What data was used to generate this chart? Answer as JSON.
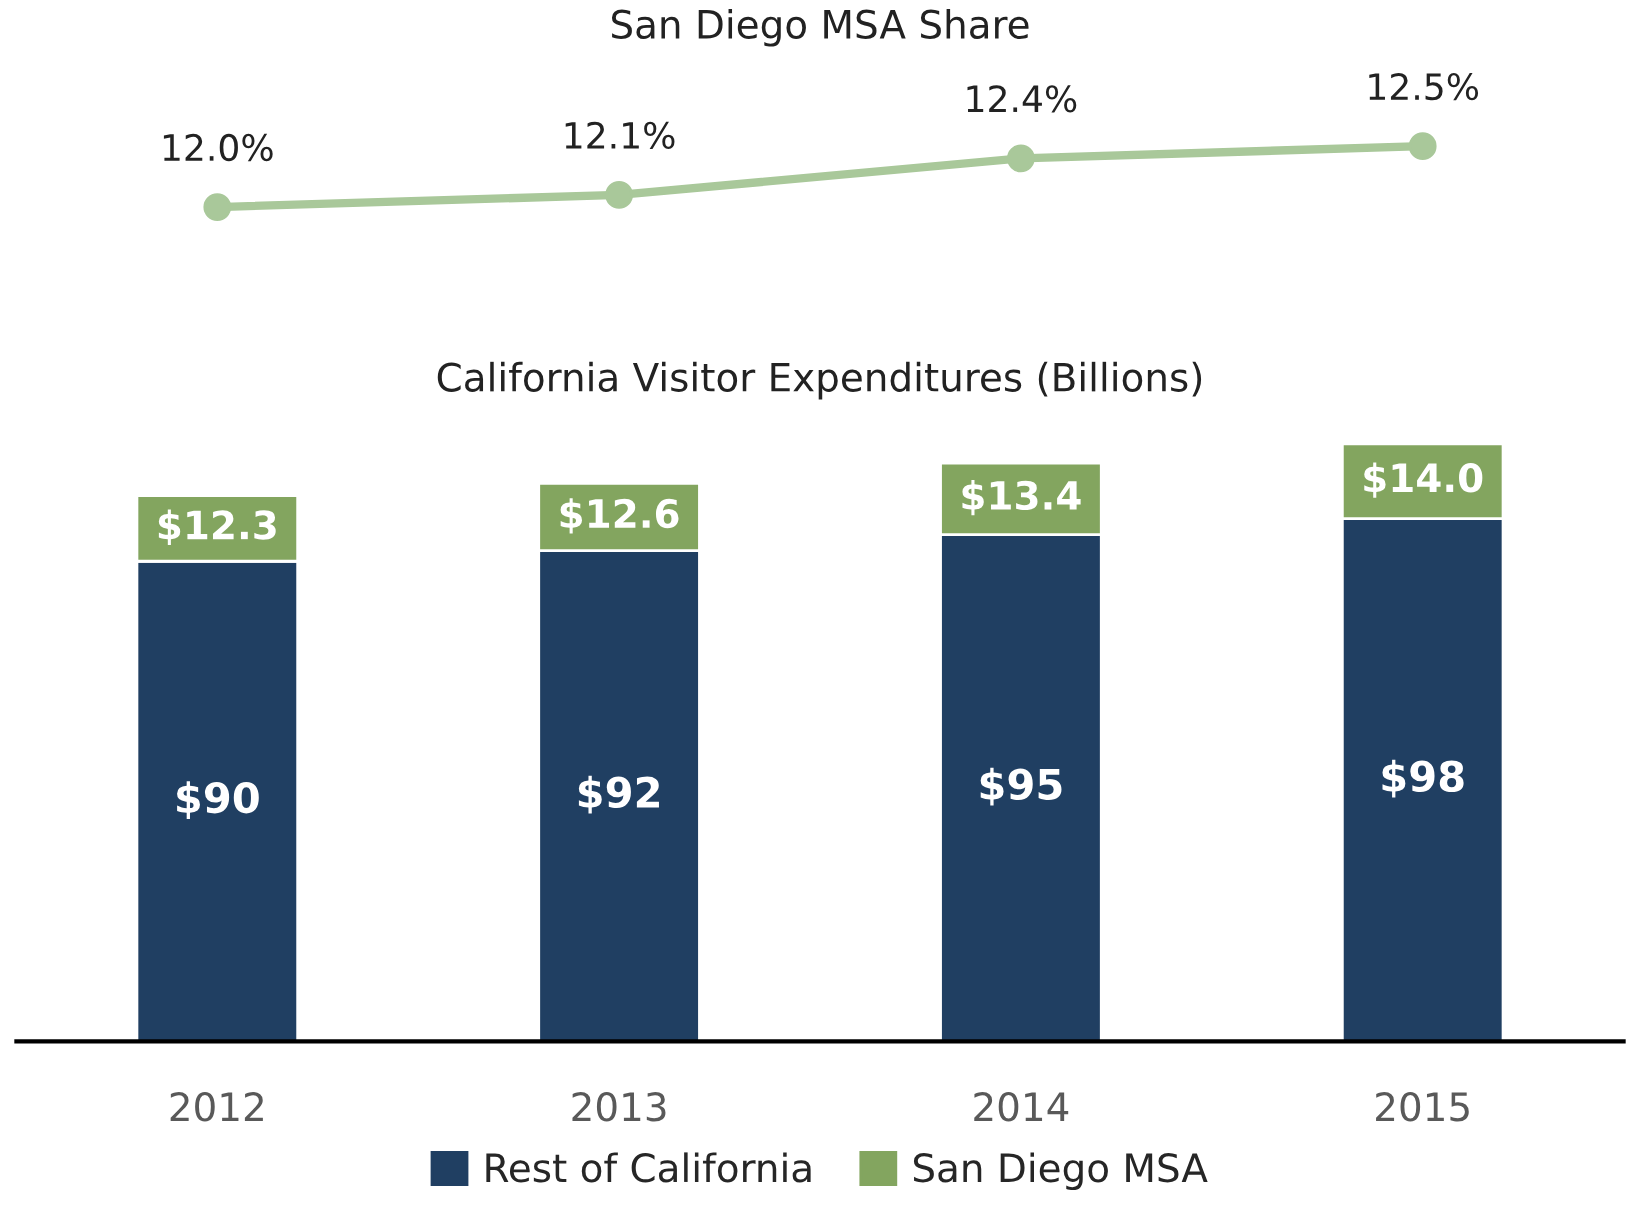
{
  "chart_data": [
    {
      "type": "line",
      "title": "San Diego MSA Share",
      "categories": [
        null,
        null,
        null,
        null
      ],
      "tick_labels": false,
      "marker": "circle",
      "line_style": "solid",
      "series": [
        {
          "color": "#a9c89a",
          "values": [
            12.0,
            12.1,
            12.4,
            12.5
          ],
          "value_labels": [
            "12.0%",
            "12.1%",
            "12.4%",
            "12.5%"
          ]
        }
      ]
    },
    {
      "type": "bar",
      "title": "California Visitor Expenditures (Billions)",
      "categories": [
        "2012",
        "2013",
        "2014",
        "2015"
      ],
      "stacked": true,
      "grid": false,
      "legend": "bottom",
      "tick_labels": "x",
      "series": [
        {
          "name": "Rest of California",
          "color": "#203f62",
          "values": [
            90,
            92,
            95,
            98
          ],
          "value_labels": [
            "$90",
            "$92",
            "$95",
            "$98"
          ]
        },
        {
          "name": "San Diego MSA",
          "color": "#83a55f",
          "values": [
            12.3,
            12.6,
            13.4,
            14.0
          ],
          "value_labels": [
            "$12.3",
            "$12.6",
            "$13.4",
            "$14.0"
          ]
        }
      ]
    }
  ]
}
